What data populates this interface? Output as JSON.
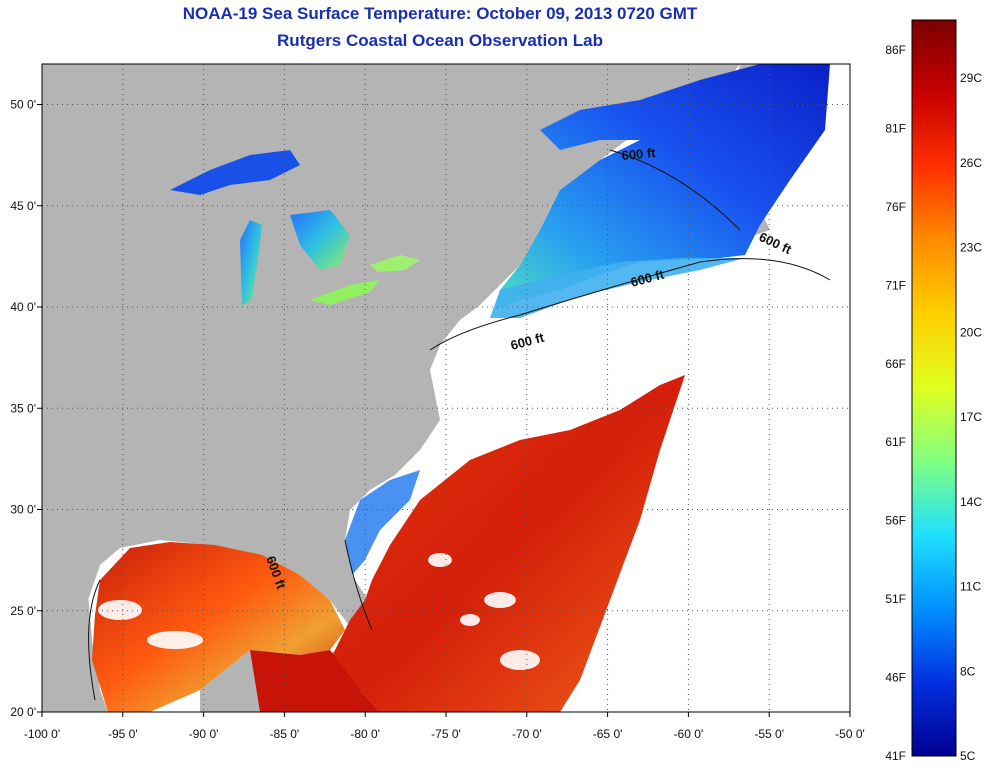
{
  "title": {
    "line1": "NOAA-19 Sea Surface Temperature:  October 09, 2013 0720 GMT",
    "line2": "Rutgers Coastal Ocean Observation Lab"
  },
  "map": {
    "lon_range": [
      -100,
      -50
    ],
    "lat_range": [
      20,
      52
    ],
    "x_ticks": [
      {
        "lon": -100,
        "label": "-100 0'"
      },
      {
        "lon": -95,
        "label": "-95 0'"
      },
      {
        "lon": -90,
        "label": "-90 0'"
      },
      {
        "lon": -85,
        "label": "-85 0'"
      },
      {
        "lon": -80,
        "label": "-80 0'"
      },
      {
        "lon": -75,
        "label": "-75 0'"
      },
      {
        "lon": -70,
        "label": "-70 0'"
      },
      {
        "lon": -65,
        "label": "-65 0'"
      },
      {
        "lon": -60,
        "label": "-60 0'"
      },
      {
        "lon": -55,
        "label": "-55 0'"
      },
      {
        "lon": -50,
        "label": "-50 0'"
      }
    ],
    "y_ticks": [
      {
        "lat": 20,
        "label": "20 0'"
      },
      {
        "lat": 25,
        "label": "25 0'"
      },
      {
        "lat": 30,
        "label": "30 0'"
      },
      {
        "lat": 35,
        "label": "35 0'"
      },
      {
        "lat": 40,
        "label": "40 0'"
      },
      {
        "lat": 45,
        "label": "45 0'"
      },
      {
        "lat": 50,
        "label": "50 0'"
      }
    ],
    "contour_labels": [
      {
        "text": "600 ft"
      },
      {
        "text": "600 ft"
      },
      {
        "text": "600 ft"
      },
      {
        "text": "600 ft"
      },
      {
        "text": "600 ft"
      }
    ],
    "colors": {
      "land": "#b4b4b4",
      "no_data": "#ffffff",
      "warm": "#d8200a",
      "cold": "#1430d8"
    }
  },
  "colorbar": {
    "fahrenheit_labels": [
      "86F",
      "81F",
      "76F",
      "71F",
      "66F",
      "61F",
      "56F",
      "51F",
      "46F",
      "41F"
    ],
    "celsius_labels": [
      "29C",
      "26C",
      "23C",
      "20C",
      "17C",
      "14C",
      "11C",
      "8C",
      "5C"
    ],
    "gradient_colors": [
      "#7a0000",
      "#c80000",
      "#ff3000",
      "#ff8c00",
      "#ffd000",
      "#e0ff20",
      "#80ff80",
      "#20e0ff",
      "#0090ff",
      "#0030e0",
      "#000090"
    ]
  }
}
